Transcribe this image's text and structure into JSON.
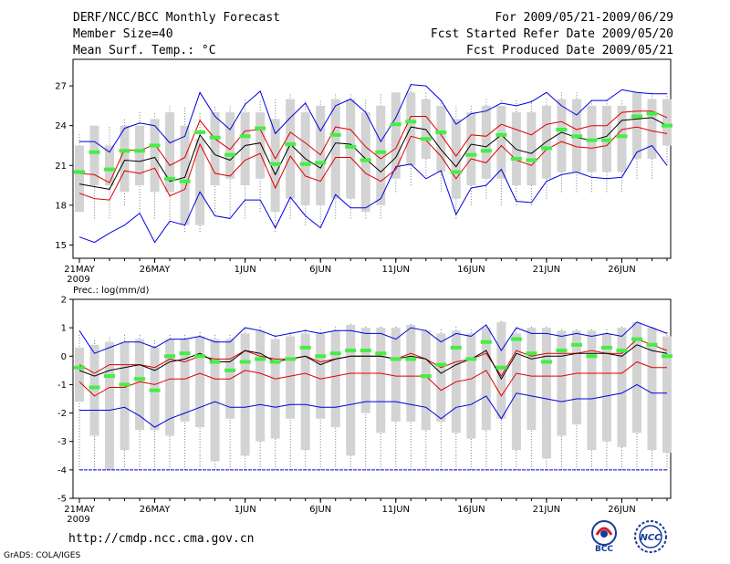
{
  "header": {
    "title": "DERF/NCC/BCC Monthly Forecast",
    "member": "Member Size=40",
    "variable": "Mean Surf. Temp.: °C",
    "period": "For 2009/05/21-2009/06/29",
    "started": "Fcst Started Refer Date 2009/05/20",
    "produced": "Fcst Produced Date 2009/05/21"
  },
  "footer": {
    "url": "http://cmdp.ncc.cma.gov.cn",
    "grads": "GrADS: COLA/IGES",
    "logo1": "BCC",
    "logo2": "NCC"
  },
  "colors": {
    "box": "#d3d3d3",
    "mean": "#000000",
    "inner": "#e00000",
    "outer": "#0000e0",
    "obs": "#44ee44"
  },
  "chart_data": [
    {
      "type": "box-line",
      "title": "Mean Surf. Temp.: °C",
      "xlabel": "2009",
      "x_ticks": [
        "21MAY",
        "26MAY",
        "1JUN",
        "6JUN",
        "11JUN",
        "16JUN",
        "21JUN",
        "26JUN"
      ],
      "x_tick_index": [
        0,
        5,
        11,
        16,
        21,
        26,
        31,
        36
      ],
      "ylim": [
        14,
        29
      ],
      "yticks": [
        15,
        18,
        21,
        24,
        27
      ],
      "days": 40,
      "box_low": [
        17.5,
        19.5,
        19.5,
        19.0,
        19.5,
        19.0,
        19.0,
        16.5,
        16.5,
        19.5,
        20.0,
        19.5,
        20.0,
        17.5,
        18.5,
        18.0,
        18.0,
        18.5,
        18.5,
        17.5,
        18.0,
        20.0,
        21.0,
        21.5,
        20.5,
        18.5,
        19.5,
        20.0,
        20.0,
        19.5,
        19.5,
        20.0,
        20.5,
        20.5,
        20.5,
        20.5,
        20.5,
        21.5,
        21.5,
        22.5
      ],
      "box_high": [
        22.5,
        24.0,
        22.5,
        24.0,
        24.0,
        24.5,
        25.0,
        24.0,
        23.0,
        25.0,
        25.0,
        25.0,
        25.0,
        24.5,
        26.0,
        25.0,
        25.5,
        26.0,
        26.0,
        25.0,
        25.5,
        26.5,
        26.5,
        26.0,
        25.5,
        24.5,
        25.0,
        25.5,
        25.5,
        25.0,
        25.0,
        25.5,
        26.0,
        26.0,
        25.5,
        25.5,
        25.5,
        26.5,
        26.0,
        26.0
      ],
      "whisker_low": [
        17.5,
        17.0,
        17.0,
        18.0,
        17.5,
        17.0,
        16.5,
        16.0,
        16.0,
        17.5,
        17.0,
        17.0,
        17.5,
        16.0,
        17.0,
        16.5,
        16.5,
        17.0,
        17.0,
        17.0,
        17.0,
        19.0,
        19.5,
        20.0,
        19.0,
        17.0,
        18.0,
        18.5,
        18.0,
        18.0,
        18.0,
        18.5,
        19.0,
        19.0,
        19.0,
        19.0,
        19.0,
        20.0,
        20.0,
        21.0
      ],
      "whisker_high": [
        23.5,
        24.0,
        24.0,
        24.5,
        25.0,
        25.0,
        25.5,
        25.5,
        25.0,
        25.5,
        25.5,
        26.0,
        26.0,
        26.0,
        26.5,
        26.0,
        26.0,
        26.5,
        26.5,
        26.0,
        26.5,
        26.5,
        27.0,
        26.5,
        26.0,
        25.5,
        25.5,
        26.0,
        26.0,
        26.0,
        26.0,
        26.0,
        26.5,
        26.5,
        26.0,
        26.0,
        26.0,
        26.5,
        26.5,
        26.5
      ],
      "max": [
        22.8,
        22.8,
        22.0,
        23.8,
        24.2,
        24.0,
        22.7,
        23.2,
        26.5,
        24.7,
        23.7,
        25.6,
        26.6,
        23.4,
        24.6,
        25.7,
        23.6,
        25.5,
        26.0,
        25.0,
        22.8,
        24.6,
        27.1,
        27.0,
        25.9,
        24.1,
        24.9,
        25.1,
        25.7,
        25.5,
        25.8,
        26.5,
        25.5,
        24.8,
        25.9,
        25.9,
        26.7,
        26.5,
        26.4,
        26.4
      ],
      "p_high": [
        20.4,
        20.3,
        19.7,
        22.2,
        22.1,
        22.6,
        21.0,
        21.6,
        24.4,
        23.0,
        22.2,
        23.6,
        23.7,
        21.5,
        23.5,
        22.7,
        21.8,
        23.9,
        23.7,
        22.4,
        21.5,
        22.3,
        24.7,
        24.7,
        23.3,
        21.7,
        23.3,
        23.2,
        24.1,
        23.7,
        23.3,
        24.1,
        24.3,
        23.7,
        24.0,
        24.0,
        25.0,
        25.1,
        25.1,
        24.6
      ],
      "mean": [
        19.6,
        19.4,
        19.2,
        21.4,
        21.3,
        21.6,
        19.8,
        20.1,
        23.3,
        21.8,
        21.4,
        22.5,
        22.7,
        20.3,
        22.6,
        21.5,
        20.8,
        22.7,
        22.6,
        21.5,
        20.5,
        21.6,
        23.9,
        23.7,
        22.2,
        20.9,
        22.6,
        22.4,
        23.3,
        22.2,
        21.9,
        22.8,
        23.5,
        23.1,
        22.9,
        23.2,
        24.4,
        24.5,
        24.6,
        24.0
      ],
      "p_low": [
        18.9,
        18.5,
        18.4,
        20.6,
        20.4,
        20.8,
        18.7,
        19.2,
        22.6,
        20.4,
        20.2,
        21.4,
        21.9,
        19.3,
        21.7,
        20.2,
        19.8,
        21.6,
        21.6,
        20.4,
        19.8,
        20.7,
        23.2,
        22.9,
        21.7,
        20.0,
        21.5,
        21.2,
        22.5,
        21.4,
        21.0,
        22.2,
        22.8,
        22.4,
        22.3,
        22.5,
        23.7,
        23.9,
        23.6,
        23.4
      ],
      "min": [
        15.6,
        15.2,
        15.9,
        16.5,
        17.4,
        15.2,
        16.8,
        16.5,
        19.0,
        17.2,
        17.0,
        18.4,
        18.4,
        16.3,
        18.6,
        17.2,
        16.3,
        18.8,
        17.8,
        17.8,
        18.5,
        20.9,
        21.1,
        20.0,
        20.6,
        17.3,
        19.3,
        19.5,
        20.7,
        18.3,
        18.2,
        19.8,
        20.3,
        20.5,
        20.1,
        20.0,
        20.1,
        22.0,
        22.5,
        21.0
      ],
      "obs": [
        20.5,
        22.0,
        20.7,
        22.1,
        22.1,
        22.5,
        20.0,
        19.8,
        23.5,
        23.1,
        21.8,
        23.2,
        23.8,
        21.1,
        22.6,
        21.1,
        21.2,
        23.3,
        22.4,
        21.4,
        22.0,
        24.1,
        24.3,
        23.0,
        23.5,
        20.5,
        21.8,
        22.1,
        23.3,
        21.5,
        21.4,
        22.3,
        23.7,
        23.2,
        22.9,
        22.9,
        23.2,
        24.7,
        24.9,
        24.0
      ]
    },
    {
      "type": "box-line",
      "title": "Prec.: log(mm/d)",
      "xlabel": "2009",
      "x_ticks": [
        "21MAY",
        "26MAY",
        "1JUN",
        "6JUN",
        "11JUN",
        "16JUN",
        "21JUN",
        "26JUN"
      ],
      "x_tick_index": [
        0,
        5,
        11,
        16,
        21,
        26,
        31,
        36
      ],
      "ylim": [
        -5,
        2
      ],
      "yticks": [
        -5,
        -4,
        -3,
        -2,
        -1,
        0,
        1,
        2
      ],
      "days": 40,
      "box_low": [
        -1.6,
        -2.8,
        -4.0,
        -3.3,
        -2.6,
        -2.6,
        -2.8,
        -2.3,
        -2.5,
        -3.7,
        -2.2,
        -3.5,
        -3.0,
        -2.9,
        -2.2,
        -3.3,
        -2.2,
        -2.5,
        -3.5,
        -2.0,
        -2.7,
        -2.3,
        -2.3,
        -2.6,
        -2.3,
        -2.7,
        -2.9,
        -2.6,
        -2.2,
        -3.3,
        -2.6,
        -3.6,
        -2.8,
        -2.4,
        -3.3,
        -3.0,
        -3.2,
        -2.7,
        -3.3,
        -3.4
      ],
      "box_high": [
        0.3,
        0.4,
        0.5,
        0.5,
        0.6,
        0.3,
        0.6,
        0.6,
        0.7,
        0.6,
        0.6,
        0.8,
        0.9,
        0.6,
        0.7,
        0.8,
        0.8,
        0.9,
        1.1,
        1.0,
        1.0,
        1.0,
        1.1,
        0.9,
        0.8,
        0.9,
        0.8,
        1.0,
        1.2,
        0.8,
        1.0,
        1.0,
        0.9,
        0.9,
        0.9,
        0.8,
        1.0,
        1.2,
        1.0,
        0.7
      ],
      "whisker_low": [
        -4,
        -4,
        -4,
        -4,
        -4,
        -4,
        -4,
        -4,
        -4,
        -4,
        -4,
        -4,
        -4,
        -4,
        -4,
        -4,
        -4,
        -4,
        -4,
        -4,
        -4,
        -4,
        -4,
        -4,
        -4,
        -4,
        -4,
        -4,
        -4,
        -4,
        -4,
        -4,
        -4,
        -4,
        -4,
        -4,
        -4,
        -4,
        -4,
        -4
      ],
      "whisker_high": [
        0.8,
        0.6,
        0.7,
        0.8,
        0.8,
        0.6,
        0.8,
        0.8,
        0.9,
        0.8,
        0.8,
        1.0,
        1.1,
        0.8,
        0.9,
        1.0,
        1.0,
        1.1,
        1.2,
        1.1,
        1.1,
        1.1,
        1.2,
        1.0,
        1.0,
        1.1,
        1.0,
        1.1,
        1.3,
        1.0,
        1.1,
        1.1,
        1.0,
        1.0,
        1.0,
        1.0,
        1.1,
        1.2,
        1.1,
        0.9
      ],
      "max": [
        0.9,
        0.1,
        0.3,
        0.5,
        0.5,
        0.3,
        0.6,
        0.6,
        0.7,
        0.5,
        0.5,
        1.0,
        0.9,
        0.7,
        0.8,
        0.9,
        0.8,
        0.9,
        0.9,
        0.8,
        0.8,
        0.6,
        1.0,
        0.9,
        0.5,
        0.8,
        0.7,
        1.1,
        0.2,
        1.0,
        0.8,
        0.8,
        0.7,
        0.8,
        0.7,
        0.8,
        0.7,
        1.2,
        1.0,
        0.8
      ],
      "p_high": [
        -0.3,
        -0.6,
        -0.3,
        -0.3,
        -0.3,
        -0.4,
        -0.1,
        -0.2,
        0.0,
        -0.1,
        -0.1,
        0.2,
        0.0,
        -0.1,
        -0.1,
        0.0,
        -0.2,
        -0.1,
        0.0,
        0.0,
        0.0,
        -0.1,
        0.1,
        -0.1,
        -0.4,
        -0.2,
        -0.1,
        0.1,
        -0.7,
        0.2,
        0.0,
        0.1,
        0.1,
        0.1,
        0.2,
        0.1,
        0.1,
        0.6,
        0.4,
        0.2
      ],
      "mean": [
        -0.5,
        -0.7,
        -0.5,
        -0.4,
        -0.3,
        -0.5,
        -0.2,
        -0.1,
        0.1,
        -0.2,
        -0.2,
        0.2,
        0.1,
        -0.2,
        -0.1,
        0.0,
        -0.3,
        -0.1,
        0.0,
        0.0,
        0.0,
        -0.1,
        0.0,
        -0.1,
        -0.6,
        -0.3,
        -0.1,
        0.2,
        -0.8,
        0.1,
        -0.1,
        0.0,
        0.0,
        0.1,
        0.1,
        0.1,
        0.0,
        0.4,
        0.2,
        0.1
      ],
      "p_low": [
        -0.9,
        -1.4,
        -1.1,
        -1.1,
        -0.9,
        -1.0,
        -0.8,
        -0.8,
        -0.6,
        -0.8,
        -0.8,
        -0.5,
        -0.6,
        -0.8,
        -0.7,
        -0.6,
        -0.8,
        -0.7,
        -0.6,
        -0.6,
        -0.6,
        -0.7,
        -0.7,
        -0.7,
        -1.2,
        -0.9,
        -0.8,
        -0.5,
        -1.4,
        -0.6,
        -0.7,
        -0.7,
        -0.7,
        -0.6,
        -0.6,
        -0.6,
        -0.6,
        -0.2,
        -0.4,
        -0.4
      ],
      "min": [
        -1.9,
        -1.9,
        -1.9,
        -1.8,
        -2.1,
        -2.5,
        -2.2,
        -2.0,
        -1.8,
        -1.6,
        -1.8,
        -1.8,
        -1.7,
        -1.8,
        -1.7,
        -1.7,
        -1.8,
        -1.8,
        -1.7,
        -1.6,
        -1.6,
        -1.6,
        -1.7,
        -1.8,
        -2.2,
        -1.8,
        -1.7,
        -1.4,
        -2.2,
        -1.3,
        -1.4,
        -1.5,
        -1.6,
        -1.5,
        -1.5,
        -1.4,
        -1.3,
        -1.0,
        -1.3,
        -1.3
      ],
      "obs": [
        -0.4,
        -1.1,
        -0.7,
        -1.0,
        -0.8,
        -1.2,
        0.0,
        0.1,
        0.0,
        -0.2,
        -0.5,
        -0.2,
        -0.1,
        -0.2,
        -0.1,
        0.3,
        0.0,
        0.1,
        0.2,
        0.2,
        0.1,
        -0.1,
        -0.1,
        -0.7,
        -0.3,
        0.3,
        -0.1,
        0.5,
        -0.4,
        0.6,
        0.1,
        -0.2,
        0.2,
        0.4,
        0.0,
        0.3,
        0.2,
        0.6,
        0.4,
        0.0
      ],
      "baseline": -4
    }
  ]
}
